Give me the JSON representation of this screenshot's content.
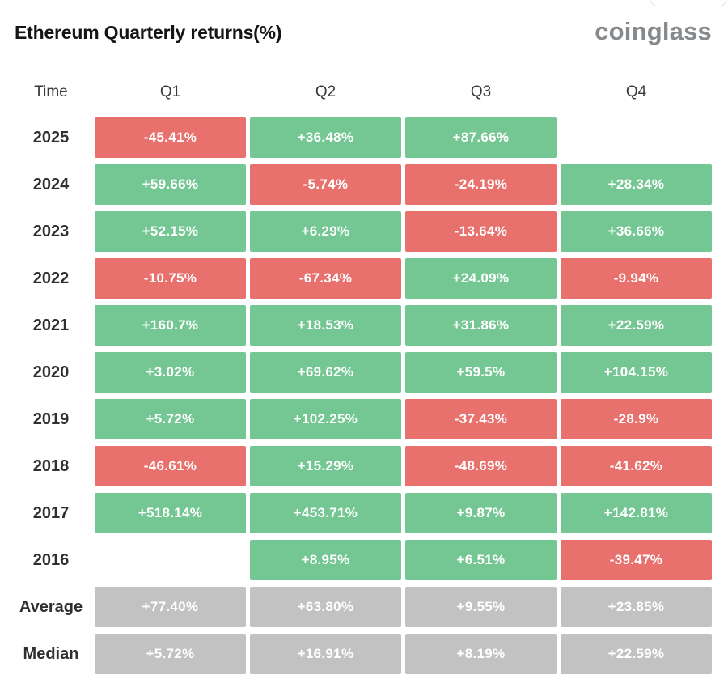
{
  "header": {
    "title": "Ethereum Quarterly returns(%)",
    "logo": "coinglass"
  },
  "colors": {
    "green": "#74c793",
    "red": "#e8716d",
    "gray": "#c2c2c2"
  },
  "table": {
    "time_label": "Time",
    "columns": [
      "Q1",
      "Q2",
      "Q3",
      "Q4"
    ],
    "rows": [
      {
        "label": "2025",
        "cells": [
          {
            "text": "-45.41%",
            "color": "red"
          },
          {
            "text": "+36.48%",
            "color": "green"
          },
          {
            "text": "+87.66%",
            "color": "green"
          },
          {
            "text": "",
            "color": "none"
          }
        ]
      },
      {
        "label": "2024",
        "cells": [
          {
            "text": "+59.66%",
            "color": "green"
          },
          {
            "text": "-5.74%",
            "color": "red"
          },
          {
            "text": "-24.19%",
            "color": "red"
          },
          {
            "text": "+28.34%",
            "color": "green"
          }
        ]
      },
      {
        "label": "2023",
        "cells": [
          {
            "text": "+52.15%",
            "color": "green"
          },
          {
            "text": "+6.29%",
            "color": "green"
          },
          {
            "text": "-13.64%",
            "color": "red"
          },
          {
            "text": "+36.66%",
            "color": "green"
          }
        ]
      },
      {
        "label": "2022",
        "cells": [
          {
            "text": "-10.75%",
            "color": "red"
          },
          {
            "text": "-67.34%",
            "color": "red"
          },
          {
            "text": "+24.09%",
            "color": "green"
          },
          {
            "text": "-9.94%",
            "color": "red"
          }
        ]
      },
      {
        "label": "2021",
        "cells": [
          {
            "text": "+160.7%",
            "color": "green"
          },
          {
            "text": "+18.53%",
            "color": "green"
          },
          {
            "text": "+31.86%",
            "color": "green"
          },
          {
            "text": "+22.59%",
            "color": "green"
          }
        ]
      },
      {
        "label": "2020",
        "cells": [
          {
            "text": "+3.02%",
            "color": "green"
          },
          {
            "text": "+69.62%",
            "color": "green"
          },
          {
            "text": "+59.5%",
            "color": "green"
          },
          {
            "text": "+104.15%",
            "color": "green"
          }
        ]
      },
      {
        "label": "2019",
        "cells": [
          {
            "text": "+5.72%",
            "color": "green"
          },
          {
            "text": "+102.25%",
            "color": "green"
          },
          {
            "text": "-37.43%",
            "color": "red"
          },
          {
            "text": "-28.9%",
            "color": "red"
          }
        ]
      },
      {
        "label": "2018",
        "cells": [
          {
            "text": "-46.61%",
            "color": "red"
          },
          {
            "text": "+15.29%",
            "color": "green"
          },
          {
            "text": "-48.69%",
            "color": "red"
          },
          {
            "text": "-41.62%",
            "color": "red"
          }
        ]
      },
      {
        "label": "2017",
        "cells": [
          {
            "text": "+518.14%",
            "color": "green"
          },
          {
            "text": "+453.71%",
            "color": "green"
          },
          {
            "text": "+9.87%",
            "color": "green"
          },
          {
            "text": "+142.81%",
            "color": "green"
          }
        ]
      },
      {
        "label": "2016",
        "cells": [
          {
            "text": "",
            "color": "none"
          },
          {
            "text": "+8.95%",
            "color": "green"
          },
          {
            "text": "+6.51%",
            "color": "green"
          },
          {
            "text": "-39.47%",
            "color": "red"
          }
        ]
      },
      {
        "label": "Average",
        "cells": [
          {
            "text": "+77.40%",
            "color": "gray"
          },
          {
            "text": "+63.80%",
            "color": "gray"
          },
          {
            "text": "+9.55%",
            "color": "gray"
          },
          {
            "text": "+23.85%",
            "color": "gray"
          }
        ]
      },
      {
        "label": "Median",
        "cells": [
          {
            "text": "+5.72%",
            "color": "gray"
          },
          {
            "text": "+16.91%",
            "color": "gray"
          },
          {
            "text": "+8.19%",
            "color": "gray"
          },
          {
            "text": "+22.59%",
            "color": "gray"
          }
        ]
      }
    ]
  },
  "chart_data": {
    "type": "heatmap",
    "title": "Ethereum Quarterly returns(%)",
    "source_label": "coinglass",
    "columns": [
      "Q1",
      "Q2",
      "Q3",
      "Q4"
    ],
    "rows": [
      "2025",
      "2024",
      "2023",
      "2022",
      "2021",
      "2020",
      "2019",
      "2018",
      "2017",
      "2016",
      "Average",
      "Median"
    ],
    "values": [
      [
        -45.41,
        36.48,
        87.66,
        null
      ],
      [
        59.66,
        -5.74,
        -24.19,
        28.34
      ],
      [
        52.15,
        6.29,
        -13.64,
        36.66
      ],
      [
        -10.75,
        -67.34,
        24.09,
        -9.94
      ],
      [
        160.7,
        18.53,
        31.86,
        22.59
      ],
      [
        3.02,
        69.62,
        59.5,
        104.15
      ],
      [
        5.72,
        102.25,
        -37.43,
        -28.9
      ],
      [
        -46.61,
        15.29,
        -48.69,
        -41.62
      ],
      [
        518.14,
        453.71,
        9.87,
        142.81
      ],
      [
        null,
        8.95,
        6.51,
        -39.47
      ],
      [
        77.4,
        63.8,
        9.55,
        23.85
      ],
      [
        5.72,
        16.91,
        8.19,
        22.59
      ]
    ],
    "color_rule": "positive=green, negative=red, Average/Median rows=gray, null=blank",
    "legend_position": "none",
    "grid": false
  }
}
